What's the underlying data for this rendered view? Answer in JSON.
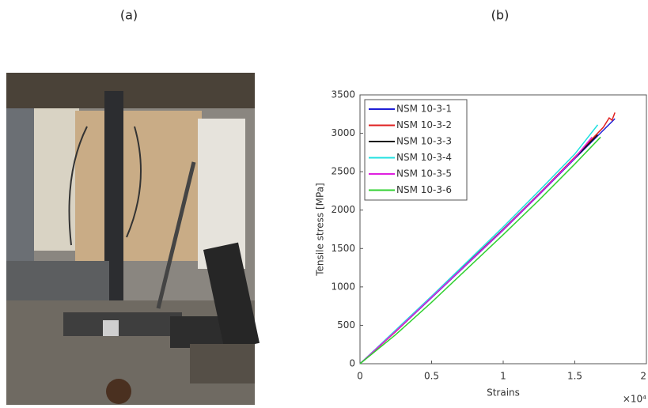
{
  "panel_labels": {
    "a": "(a)",
    "b": "(b)"
  },
  "chart_data": {
    "type": "line",
    "x_label": "Strains",
    "y_label": "Tensile stress [MPa]",
    "x_scale_label": "×10⁴",
    "xlim": [
      0,
      2
    ],
    "xticks": [
      0,
      0.5,
      1,
      1.5,
      2
    ],
    "ylim": [
      0,
      3500
    ],
    "yticks": [
      0,
      500,
      1000,
      1500,
      2000,
      2500,
      3000,
      3500
    ],
    "legend": "upper-left",
    "series": [
      {
        "name": "NSM 10-3-1",
        "color": "#1f1fd6",
        "x": [
          0,
          0.25,
          0.5,
          0.75,
          1,
          1.25,
          1.5,
          1.78
        ],
        "values": [
          0,
          420,
          860,
          1300,
          1740,
          2200,
          2670,
          3190
        ]
      },
      {
        "name": "NSM 10-3-2",
        "color": "#e02020",
        "x": [
          0,
          0.25,
          0.5,
          0.75,
          1,
          1.25,
          1.5,
          1.7,
          1.74,
          1.76,
          1.78
        ],
        "values": [
          0,
          420,
          870,
          1310,
          1750,
          2210,
          2690,
          3080,
          3200,
          3170,
          3270
        ]
      },
      {
        "name": "NSM 10-3-3",
        "color": "#111111",
        "x": [
          0,
          0.25,
          0.5,
          0.75,
          1,
          1.25,
          1.5,
          1.66
        ],
        "values": [
          0,
          430,
          870,
          1310,
          1750,
          2210,
          2680,
          2980
        ]
      },
      {
        "name": "NSM 10-3-4",
        "color": "#20e0e0",
        "x": [
          0,
          0.25,
          0.5,
          0.75,
          1,
          1.25,
          1.5,
          1.66
        ],
        "values": [
          0,
          440,
          880,
          1330,
          1780,
          2250,
          2730,
          3110
        ]
      },
      {
        "name": "NSM 10-3-5",
        "color": "#e020e0",
        "x": [
          0,
          0.25,
          0.5,
          0.75,
          1,
          1.25,
          1.5,
          1.62
        ],
        "values": [
          0,
          425,
          865,
          1305,
          1745,
          2205,
          2680,
          2950
        ]
      },
      {
        "name": "NSM 10-3-6",
        "color": "#30d030",
        "x": [
          0,
          0.25,
          0.5,
          0.75,
          1,
          1.25,
          1.5,
          1.68
        ],
        "values": [
          0,
          380,
          800,
          1240,
          1680,
          2130,
          2600,
          2950
        ]
      }
    ]
  }
}
